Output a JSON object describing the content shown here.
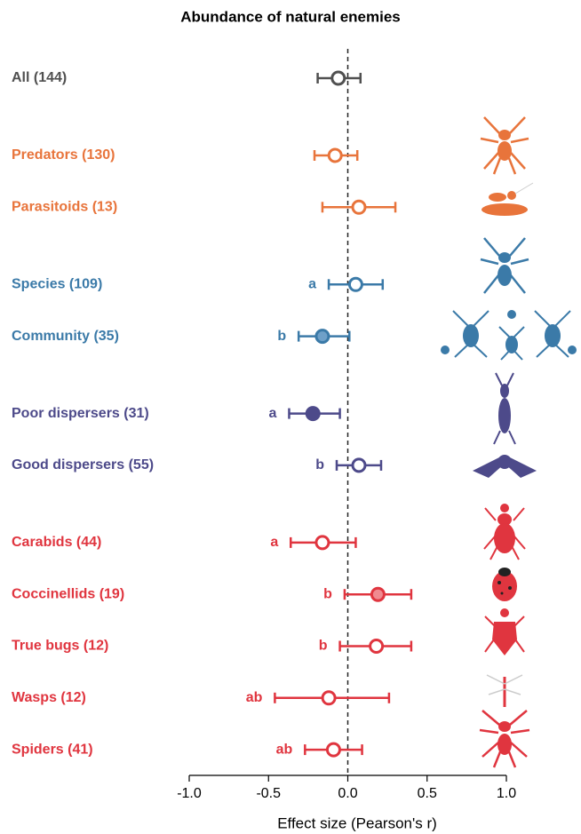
{
  "chart_data": {
    "type": "forest",
    "title": "Abundance of natural enemies",
    "xlabel": "Effect size (Pearson's r)",
    "categories": [
      "All (144)",
      "Predators (130)",
      "Parasitoids (13)",
      "Species (109)",
      "Community (35)",
      "Poor dispersers (31)",
      "Good dispersers (55)",
      "Carabids (44)",
      "Coccinellids (19)",
      "True bugs (12)",
      "Wasps (12)",
      "Spiders (41)"
    ],
    "values": [
      -0.06,
      -0.08,
      0.07,
      0.05,
      -0.16,
      -0.22,
      0.07,
      -0.16,
      0.19,
      0.18,
      -0.12,
      -0.09
    ],
    "lower": [
      -0.19,
      -0.21,
      -0.16,
      -0.12,
      -0.31,
      -0.37,
      -0.07,
      -0.36,
      -0.02,
      -0.05,
      -0.46,
      -0.27
    ],
    "upper": [
      0.08,
      0.06,
      0.3,
      0.22,
      0.01,
      -0.05,
      0.21,
      0.05,
      0.4,
      0.4,
      0.26,
      0.09
    ],
    "letters": [
      null,
      null,
      null,
      "a",
      "b",
      "a",
      "b",
      "a",
      "b",
      "b",
      "ab",
      "ab"
    ],
    "colors": [
      "#505050",
      "#e8743b",
      "#e8743b",
      "#3b7aa8",
      "#3b7aa8",
      "#4d4a8a",
      "#4d4a8a",
      "#e0353f",
      "#e0353f",
      "#e0353f",
      "#e0353f",
      "#e0353f"
    ],
    "marker_fills": [
      "#ffffff",
      "#ffffff",
      "#ffffff",
      "#ffffff",
      "#6fa0c8",
      "#4d4a8a",
      "#ffffff",
      "#ffffff",
      "#f08a90",
      "#ffffff",
      "#ffffff",
      "#ffffff"
    ],
    "reference_line": 0,
    "xlim": [
      -1.0,
      1.0
    ],
    "xticks": [
      {
        "value": -1.0,
        "label": "-1.0"
      },
      {
        "value": -0.5,
        "label": "-0.5"
      },
      {
        "value": 0,
        "label": "0.0"
      },
      {
        "value": 0.5,
        "label": "0.5"
      },
      {
        "value": 1.0,
        "label": "1.0"
      }
    ]
  }
}
